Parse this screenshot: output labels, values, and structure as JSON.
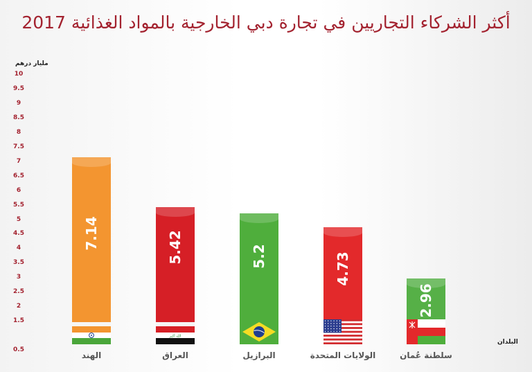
{
  "title": "أكثر الشركاء التجاريين في تجارة دبي الخارجية بالمواد الغذائية 2017",
  "unit_label": "مليار درهم",
  "x_axis_label": "البلدان",
  "y_ticks": [
    "10",
    "9.5",
    "9",
    "8.5",
    "8",
    "7.5",
    "7",
    "6.5",
    "6",
    "5.5",
    "5",
    "4.5",
    "4",
    "3.5",
    "3",
    "2.5",
    "2",
    "1.5",
    "0.5"
  ],
  "bars": [
    {
      "country": "الهند",
      "value_label": "7.14",
      "color": "#f39530",
      "flag": "india"
    },
    {
      "country": "العراق",
      "value_label": "5.42",
      "color": "#d61f26",
      "flag": "iraq"
    },
    {
      "country": "البرازيل",
      "value_label": "5.2",
      "color": "#4fae3c",
      "flag": "brazil"
    },
    {
      "country": "الولايات المتحدة",
      "value_label": "4.73",
      "color": "#e3292b",
      "flag": "usa"
    },
    {
      "country": "سلطنة عُمان",
      "value_label": "2.96",
      "color": "#56b047",
      "flag": "oman"
    }
  ],
  "chart_data": {
    "type": "bar",
    "title": "أكثر الشركاء التجاريين في تجارة دبي الخارجية بالمواد الغذائية 2017",
    "categories": [
      "الهند",
      "العراق",
      "البرازيل",
      "الولايات المتحدة",
      "سلطنة عُمان"
    ],
    "values": [
      7.14,
      5.42,
      5.2,
      4.73,
      2.96
    ],
    "xlabel": "البلدان",
    "ylabel": "مليار درهم",
    "ylim": [
      0,
      10
    ],
    "yticks": [
      0.5,
      1.5,
      2,
      2.5,
      3,
      3.5,
      4,
      4.5,
      5,
      5.5,
      6,
      6.5,
      7,
      7.5,
      8,
      8.5,
      9,
      9.5,
      10
    ],
    "grid": false,
    "legend": null,
    "colors": [
      "#f39530",
      "#d61f26",
      "#4fae3c",
      "#e3292b",
      "#56b047"
    ]
  }
}
